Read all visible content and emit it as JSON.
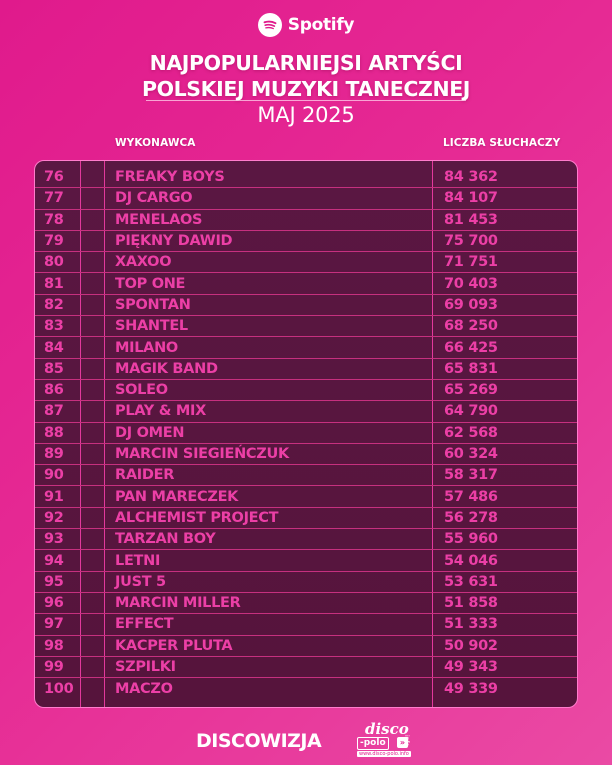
{
  "header": {
    "brand": "Spotify",
    "title_line1": "NAJPOPULARNIEJSI ARTYŚCI",
    "title_line2": "POLSKIEJ MUZYKI TANECZNEJ",
    "period": "MAJ 2025"
  },
  "table": {
    "columns": {
      "artist": "WYKONAWCA",
      "listeners": "LICZBA SŁUCHACZY"
    },
    "rows": [
      {
        "rank": "76",
        "artist": "FREAKY BOYS",
        "listeners": "84 362"
      },
      {
        "rank": "77",
        "artist": "DJ CARGO",
        "listeners": "84 107"
      },
      {
        "rank": "78",
        "artist": "MENELAOS",
        "listeners": "81 453"
      },
      {
        "rank": "79",
        "artist": "PIĘKNY DAWID",
        "listeners": "75 700"
      },
      {
        "rank": "80",
        "artist": "XAXOO",
        "listeners": "71 751"
      },
      {
        "rank": "81",
        "artist": "TOP ONE",
        "listeners": "70 403"
      },
      {
        "rank": "82",
        "artist": "SPONTAN",
        "listeners": "69 093"
      },
      {
        "rank": "83",
        "artist": "SHANTEL",
        "listeners": "68 250"
      },
      {
        "rank": "84",
        "artist": "MILANO",
        "listeners": "66 425"
      },
      {
        "rank": "85",
        "artist": "MAGIK BAND",
        "listeners": "65 831"
      },
      {
        "rank": "86",
        "artist": "SOLEO",
        "listeners": "65 269"
      },
      {
        "rank": "87",
        "artist": "PLAY & MIX",
        "listeners": "64 790"
      },
      {
        "rank": "88",
        "artist": "DJ OMEN",
        "listeners": "62 568"
      },
      {
        "rank": "89",
        "artist": "MARCIN SIEGIEŃCZUK",
        "listeners": "60 324"
      },
      {
        "rank": "90",
        "artist": "RAIDER",
        "listeners": "58 317"
      },
      {
        "rank": "91",
        "artist": "PAN MARECZEK",
        "listeners": "57 486"
      },
      {
        "rank": "92",
        "artist": "ALCHEMIST PROJECT",
        "listeners": "56 278"
      },
      {
        "rank": "93",
        "artist": "TARZAN BOY",
        "listeners": "55 960"
      },
      {
        "rank": "94",
        "artist": "LETNI",
        "listeners": "54 046"
      },
      {
        "rank": "95",
        "artist": "JUST 5",
        "listeners": "53 631"
      },
      {
        "rank": "96",
        "artist": "MARCIN MILLER",
        "listeners": "51 858"
      },
      {
        "rank": "97",
        "artist": "EFFECT",
        "listeners": "51 333"
      },
      {
        "rank": "98",
        "artist": "KACPER PLUTA",
        "listeners": "50 902"
      },
      {
        "rank": "99",
        "artist": "SZPILKI",
        "listeners": "49 343"
      },
      {
        "rank": "100",
        "artist": "MACZO",
        "listeners": "49 339"
      }
    ]
  },
  "footer": {
    "brand1": "DISCOWIZJA",
    "brand2_top": "disco",
    "brand2_middle": "-polo",
    "brand2_arrow": "»",
    "brand2_side": "info",
    "brand2_url": "www.disco-polo.info"
  },
  "colors": {
    "background": "#e01a8c",
    "table_bg": "#5a1742",
    "text_accent": "#ec3fa6",
    "border": "#ff7ccc"
  }
}
